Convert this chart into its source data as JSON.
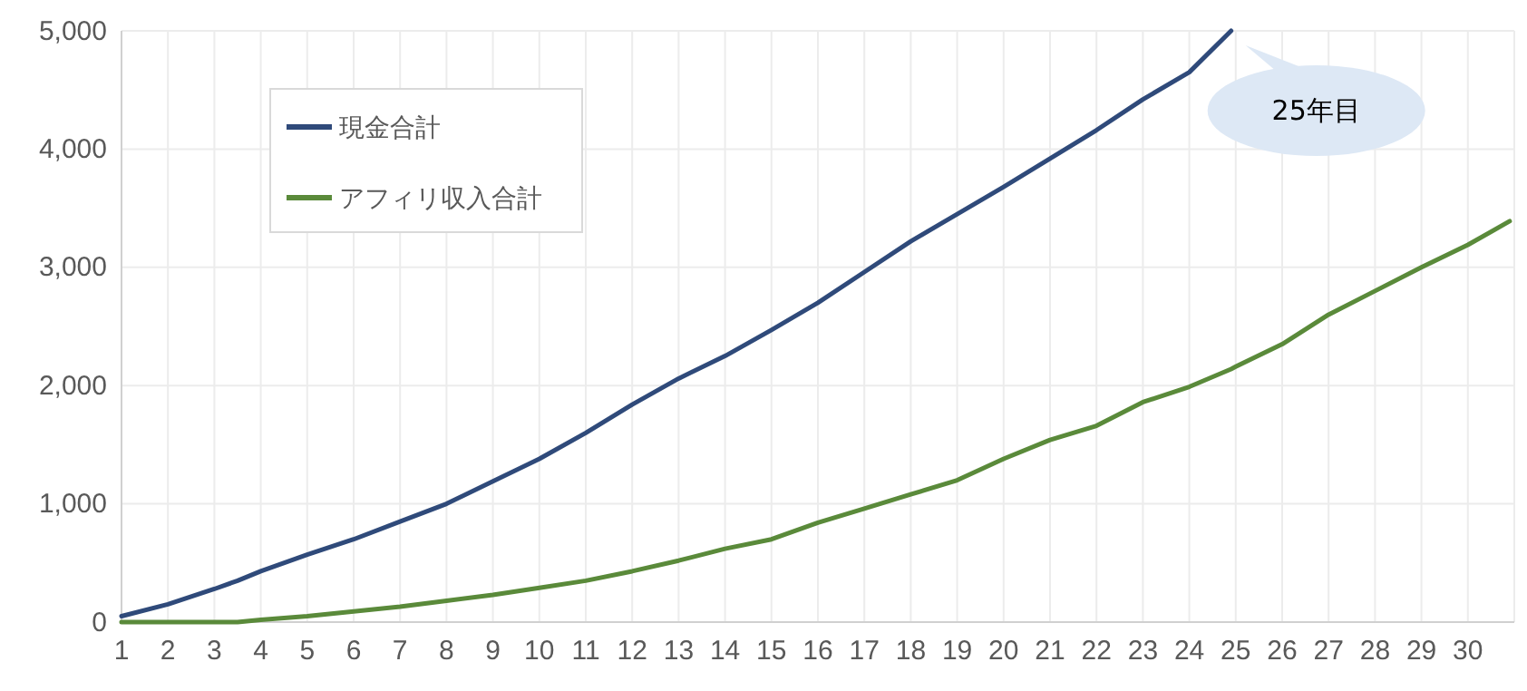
{
  "chart_data": {
    "type": "line",
    "x": [
      1,
      2,
      3,
      3.5,
      4,
      5,
      6,
      7,
      8,
      9,
      10,
      11,
      12,
      13,
      14,
      15,
      16,
      17,
      18,
      19,
      20,
      21,
      22,
      23,
      24,
      24.9,
      25,
      26,
      27,
      28,
      29,
      30,
      30.9
    ],
    "series": [
      {
        "name": "現金合計",
        "color": "#2f4a7a",
        "values": [
          50,
          150,
          280,
          350,
          430,
          570,
          700,
          850,
          1000,
          1190,
          1380,
          1600,
          1840,
          2060,
          2250,
          2470,
          2700,
          2960,
          3220,
          3450,
          3680,
          3920,
          4160,
          4420,
          4650,
          5000,
          null,
          null,
          null,
          null,
          null,
          null,
          null
        ]
      },
      {
        "name": "アフィリ収入合計",
        "color": "#5a8a3a",
        "values": [
          0,
          0,
          0,
          0,
          20,
          50,
          90,
          130,
          180,
          230,
          290,
          350,
          430,
          520,
          620,
          700,
          840,
          960,
          1080,
          1200,
          1380,
          1540,
          1660,
          1860,
          1990,
          2140,
          2160,
          2350,
          2600,
          2800,
          3000,
          3190,
          3390
        ]
      }
    ],
    "xlim": [
      1,
      31
    ],
    "xticks": [
      1,
      2,
      3,
      4,
      5,
      6,
      7,
      8,
      9,
      10,
      11,
      12,
      13,
      14,
      15,
      16,
      17,
      18,
      19,
      20,
      21,
      22,
      23,
      24,
      25,
      26,
      27,
      28,
      29,
      30,
      {
        "value": 31,
        "label": null
      }
    ],
    "ylim": [
      0,
      5000
    ],
    "yticks": [
      0,
      {
        "value": 1000,
        "label": "1,000"
      },
      {
        "value": 2000,
        "label": "2,000"
      },
      {
        "value": 3000,
        "label": "3,000"
      },
      {
        "value": 4000,
        "label": "4,000"
      },
      {
        "value": 5000,
        "label": "5,000"
      }
    ],
    "grid": true,
    "legend": "top left",
    "line_style": "solid",
    "annotations": [
      {
        "text": "25年目",
        "x": 24.9,
        "y": 5000
      }
    ]
  }
}
